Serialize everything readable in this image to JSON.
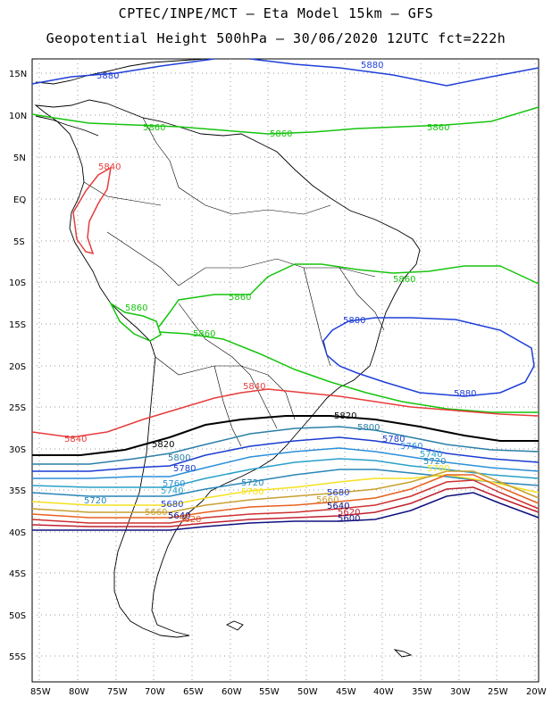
{
  "title_line1": "CPTEC/INPE/MCT –  Eta Model 15km – GFS",
  "title_line2": "Geopotential Height 500hPa – 30/06/2020 12UTC fct=222h",
  "lat_ticks": [
    "15N",
    "10N",
    "5N",
    "EQ",
    "5S",
    "10S",
    "15S",
    "20S",
    "25S",
    "30S",
    "35S",
    "40S",
    "45S",
    "50S",
    "55S"
  ],
  "lon_ticks": [
    "85W",
    "80W",
    "75W",
    "70W",
    "65W",
    "60W",
    "55W",
    "50W",
    "45W",
    "40W",
    "35W",
    "30W",
    "25W",
    "20W"
  ],
  "contour_labels": {
    "c5880_a": "5880",
    "c5880_b": "5880",
    "c5880_c": "5880",
    "c5880_d": "5880",
    "c5860_a": "5860",
    "c5860_b": "5860",
    "c5860_c": "5860",
    "c5860_d": "5860",
    "c5860_e": "5860",
    "c5860_f": "5860",
    "c5860_g": "5860",
    "c5840_a": "5840",
    "c5840_b": "5840",
    "c5840_c": "5840",
    "c5820_a": "5820",
    "c5820_b": "5820",
    "c5820_c": "5820",
    "c5800_a": "5800",
    "c5800_b": "5800",
    "c5780_a": "5780",
    "c5780_b": "5780",
    "c5760_a": "5760",
    "c5760_b": "5760",
    "c5740_a": "5740",
    "c5740_b": "5740",
    "c5720_a": "5720",
    "c5720_b": "5720",
    "c5720_c": "5720",
    "c5700_a": "5700",
    "c5700_b": "5700",
    "c5680_a": "5680",
    "c5680_b": "5680",
    "c5660_a": "5660",
    "c5660_b": "5660",
    "c5640_a": "5640",
    "c5640_b": "5640",
    "c5620_a": "5620",
    "c5620_b": "5620",
    "c5600_a": "5600"
  },
  "colors": {
    "c5880": "#1f3fd8",
    "c5860": "#16c40e",
    "c5840": "#e83c3c",
    "c5820": "#000000",
    "c5800": "#2a7fa6",
    "c5780": "#1a3bd0",
    "c5760": "#2b8fd8",
    "c5740": "#2aa0c8",
    "c5720": "#2a86b8",
    "c5700": "#f5e020",
    "c5680": "#c8a030",
    "c5660": "#e86020",
    "c5640": "#d03030",
    "c5620": "#c02030",
    "c5600": "#101080"
  }
}
